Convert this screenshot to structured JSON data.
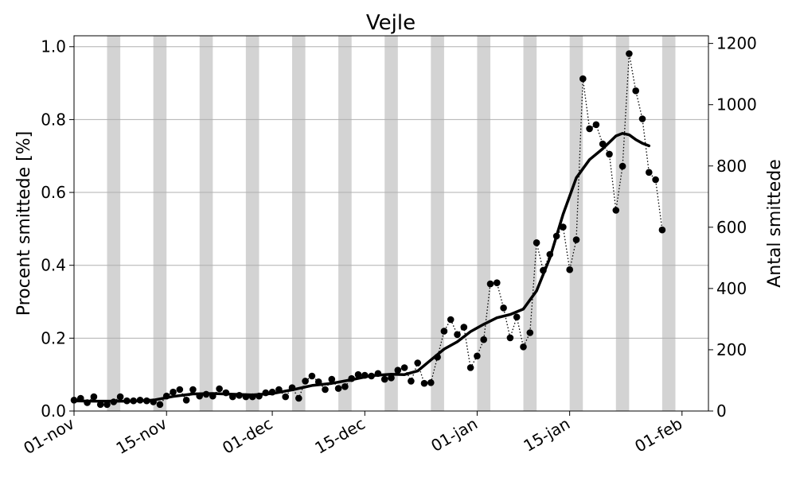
{
  "chart_data": {
    "type": "line",
    "title": "Vejle",
    "ylabel_left": "Procent smittede [%]",
    "ylabel_right": "Antal smittede",
    "x_range": [
      "2020-11-01",
      "2021-02-05"
    ],
    "ylim_left": [
      0,
      1.03
    ],
    "ylim_right": [
      0,
      1225
    ],
    "x_tick_labels": [
      "01-nov",
      "15-nov",
      "01-dec",
      "15-dec",
      "01-jan",
      "15-jan",
      "01-feb"
    ],
    "x_tick_dates": [
      "2020-11-01",
      "2020-11-15",
      "2020-12-01",
      "2020-12-15",
      "2021-01-01",
      "2021-01-15",
      "2021-02-01"
    ],
    "y_ticks_left": [
      "0.0",
      "0.2",
      "0.4",
      "0.6",
      "0.8",
      "1.0"
    ],
    "y_ticks_right": [
      "0",
      "200",
      "400",
      "600",
      "800",
      "1000",
      "1200"
    ],
    "grid": "horizontal",
    "weekend_bands": [
      [
        "2020-11-06",
        "2020-11-08"
      ],
      [
        "2020-11-13",
        "2020-11-15"
      ],
      [
        "2020-11-20",
        "2020-11-22"
      ],
      [
        "2020-11-27",
        "2020-11-29"
      ],
      [
        "2020-12-04",
        "2020-12-06"
      ],
      [
        "2020-12-11",
        "2020-12-13"
      ],
      [
        "2020-12-18",
        "2020-12-20"
      ],
      [
        "2020-12-25",
        "2020-12-27"
      ],
      [
        "2021-01-01",
        "2021-01-03"
      ],
      [
        "2021-01-08",
        "2021-01-10"
      ],
      [
        "2021-01-15",
        "2021-01-17"
      ],
      [
        "2021-01-22",
        "2021-01-24"
      ],
      [
        "2021-01-29",
        "2021-01-31"
      ],
      [
        "2021-02-05",
        "2021-02-07"
      ]
    ],
    "band_color": "#d3d3d3",
    "series": [
      {
        "style": "dots-dotted-line",
        "color": "#000000",
        "points": [
          [
            "2020-11-01",
            0.03
          ],
          [
            "2020-11-02",
            0.035
          ],
          [
            "2020-11-03",
            0.023
          ],
          [
            "2020-11-04",
            0.039
          ],
          [
            "2020-11-05",
            0.018
          ],
          [
            "2020-11-06",
            0.018
          ],
          [
            "2020-11-07",
            0.025
          ],
          [
            "2020-11-08",
            0.039
          ],
          [
            "2020-11-09",
            0.028
          ],
          [
            "2020-11-10",
            0.028
          ],
          [
            "2020-11-11",
            0.03
          ],
          [
            "2020-11-12",
            0.028
          ],
          [
            "2020-11-13",
            0.025
          ],
          [
            "2020-11-14",
            0.018
          ],
          [
            "2020-11-15",
            0.041
          ],
          [
            "2020-11-16",
            0.052
          ],
          [
            "2020-11-17",
            0.059
          ],
          [
            "2020-11-18",
            0.03
          ],
          [
            "2020-11-19",
            0.059
          ],
          [
            "2020-11-20",
            0.041
          ],
          [
            "2020-11-21",
            0.046
          ],
          [
            "2020-11-22",
            0.041
          ],
          [
            "2020-11-23",
            0.061
          ],
          [
            "2020-11-24",
            0.05
          ],
          [
            "2020-11-25",
            0.039
          ],
          [
            "2020-11-26",
            0.043
          ],
          [
            "2020-11-27",
            0.039
          ],
          [
            "2020-11-28",
            0.039
          ],
          [
            "2020-11-29",
            0.041
          ],
          [
            "2020-11-30",
            0.05
          ],
          [
            "2020-12-01",
            0.052
          ],
          [
            "2020-12-02",
            0.059
          ],
          [
            "2020-12-03",
            0.039
          ],
          [
            "2020-12-04",
            0.064
          ],
          [
            "2020-12-05",
            0.035
          ],
          [
            "2020-12-06",
            0.082
          ],
          [
            "2020-12-07",
            0.096
          ],
          [
            "2020-12-08",
            0.08
          ],
          [
            "2020-12-09",
            0.059
          ],
          [
            "2020-12-10",
            0.087
          ],
          [
            "2020-12-11",
            0.062
          ],
          [
            "2020-12-12",
            0.067
          ],
          [
            "2020-12-13",
            0.089
          ],
          [
            "2020-12-14",
            0.1
          ],
          [
            "2020-12-15",
            0.098
          ],
          [
            "2020-12-16",
            0.096
          ],
          [
            "2020-12-17",
            0.103
          ],
          [
            "2020-12-18",
            0.087
          ],
          [
            "2020-12-19",
            0.091
          ],
          [
            "2020-12-20",
            0.112
          ],
          [
            "2020-12-21",
            0.119
          ],
          [
            "2020-12-22",
            0.082
          ],
          [
            "2020-12-23",
            0.132
          ],
          [
            "2020-12-24",
            0.076
          ],
          [
            "2020-12-25",
            0.078
          ],
          [
            "2020-12-26",
            0.148
          ],
          [
            "2020-12-27",
            0.219
          ],
          [
            "2020-12-28",
            0.251
          ],
          [
            "2020-12-29",
            0.21
          ],
          [
            "2020-12-30",
            0.23
          ],
          [
            "2020-12-31",
            0.119
          ],
          [
            "2021-01-01",
            0.151
          ],
          [
            "2021-01-02",
            0.196
          ],
          [
            "2021-01-03",
            0.349
          ],
          [
            "2021-01-04",
            0.352
          ],
          [
            "2021-01-05",
            0.283
          ],
          [
            "2021-01-06",
            0.201
          ],
          [
            "2021-01-07",
            0.258
          ],
          [
            "2021-01-08",
            0.176
          ],
          [
            "2021-01-09",
            0.215
          ],
          [
            "2021-01-10",
            0.462
          ],
          [
            "2021-01-11",
            0.386
          ],
          [
            "2021-01-12",
            0.43
          ],
          [
            "2021-01-13",
            0.48
          ],
          [
            "2021-01-14",
            0.505
          ],
          [
            "2021-01-15",
            0.388
          ],
          [
            "2021-01-16",
            0.47
          ],
          [
            "2021-01-17",
            0.912
          ],
          [
            "2021-01-18",
            0.775
          ],
          [
            "2021-01-19",
            0.786
          ],
          [
            "2021-01-20",
            0.733
          ],
          [
            "2021-01-21",
            0.705
          ],
          [
            "2021-01-22",
            0.551
          ],
          [
            "2021-01-23",
            0.672
          ],
          [
            "2021-01-24",
            0.981
          ],
          [
            "2021-01-25",
            0.879
          ],
          [
            "2021-01-26",
            0.802
          ],
          [
            "2021-01-27",
            0.655
          ],
          [
            "2021-01-28",
            0.635
          ],
          [
            "2021-01-29",
            0.497
          ]
        ]
      },
      {
        "style": "thick-line",
        "color": "#000000",
        "points": [
          [
            "2020-11-01",
            0.028
          ],
          [
            "2020-11-04",
            0.027
          ],
          [
            "2020-11-07",
            0.027
          ],
          [
            "2020-11-10",
            0.027
          ],
          [
            "2020-11-13",
            0.03
          ],
          [
            "2020-11-16",
            0.04
          ],
          [
            "2020-11-19",
            0.047
          ],
          [
            "2020-11-22",
            0.048
          ],
          [
            "2020-11-25",
            0.046
          ],
          [
            "2020-11-28",
            0.044
          ],
          [
            "2020-12-01",
            0.048
          ],
          [
            "2020-12-04",
            0.058
          ],
          [
            "2020-12-07",
            0.07
          ],
          [
            "2020-12-10",
            0.076
          ],
          [
            "2020-12-13",
            0.086
          ],
          [
            "2020-12-16",
            0.097
          ],
          [
            "2020-12-19",
            0.101
          ],
          [
            "2020-12-21",
            0.1
          ],
          [
            "2020-12-23",
            0.11
          ],
          [
            "2020-12-25",
            0.14
          ],
          [
            "2020-12-27",
            0.17
          ],
          [
            "2020-12-29",
            0.19
          ],
          [
            "2020-12-31",
            0.218
          ],
          [
            "2021-01-02",
            0.238
          ],
          [
            "2021-01-04",
            0.256
          ],
          [
            "2021-01-06",
            0.265
          ],
          [
            "2021-01-08",
            0.28
          ],
          [
            "2021-01-10",
            0.33
          ],
          [
            "2021-01-12",
            0.42
          ],
          [
            "2021-01-14",
            0.54
          ],
          [
            "2021-01-16",
            0.64
          ],
          [
            "2021-01-18",
            0.69
          ],
          [
            "2021-01-20",
            0.72
          ],
          [
            "2021-01-22",
            0.755
          ],
          [
            "2021-01-23",
            0.762
          ],
          [
            "2021-01-24",
            0.758
          ],
          [
            "2021-01-25",
            0.745
          ],
          [
            "2021-01-26",
            0.735
          ],
          [
            "2021-01-27",
            0.728
          ]
        ]
      }
    ]
  }
}
